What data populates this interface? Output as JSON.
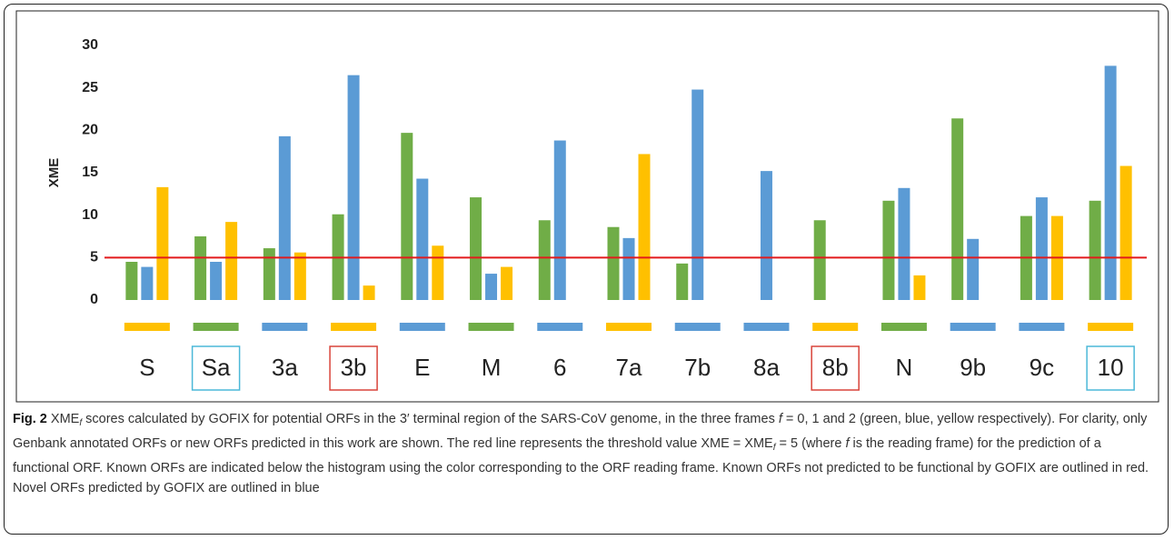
{
  "chart_data": {
    "type": "bar",
    "ylabel": "XME",
    "categories": [
      "S",
      "Sa",
      "3a",
      "3b",
      "E",
      "M",
      "6",
      "7a",
      "7b",
      "8a",
      "8b",
      "N",
      "9b",
      "9c",
      "10"
    ],
    "series": [
      {
        "color": "#70ad47",
        "values": [
          4.5,
          7.5,
          6.1,
          10.1,
          19.7,
          12.1,
          9.4,
          8.6,
          4.3,
          null,
          9.4,
          11.7,
          21.4,
          9.9,
          11.7
        ]
      },
      {
        "color": "#5b9bd5",
        "values": [
          3.9,
          4.5,
          19.3,
          26.5,
          14.3,
          3.1,
          18.8,
          7.3,
          24.8,
          15.2,
          null,
          13.2,
          7.2,
          12.1,
          27.6
        ]
      },
      {
        "color": "#ffc000",
        "values": [
          13.3,
          9.2,
          5.6,
          1.7,
          6.4,
          3.9,
          null,
          17.2,
          null,
          null,
          null,
          2.9,
          null,
          9.9,
          15.8
        ]
      }
    ],
    "frame_colors": [
      "#ffc000",
      "#70ad47",
      "#5b9bd5",
      "#ffc000",
      "#5b9bd5",
      "#70ad47",
      "#5b9bd5",
      "#ffc000",
      "#5b9bd5",
      "#5b9bd5",
      "#ffc000",
      "#70ad47",
      "#5b9bd5",
      "#5b9bd5",
      "#ffc000"
    ],
    "outlines": [
      null,
      "#4bb8d8",
      null,
      "#d9443a",
      null,
      null,
      null,
      null,
      null,
      null,
      "#d9443a",
      null,
      null,
      null,
      "#4bb8d8"
    ],
    "threshold": 5,
    "threshold_color": "#e31a1c",
    "ylim": [
      0,
      30
    ],
    "yticks": [
      0,
      5,
      10,
      15,
      20,
      25,
      30
    ]
  },
  "caption": [
    {
      "text": "Fig. 2",
      "style": "bold"
    },
    {
      "text": " XME"
    },
    {
      "text": "f",
      "style": "sub"
    },
    {
      "text": " scores calculated by GOFIX for potential ORFs in the 3′ terminal region of the SARS-CoV genome, in the three frames "
    },
    {
      "text": "f",
      "style": "italic"
    },
    {
      "text": " = 0, 1 and 2 (green, blue, yellow respectively). For clarity, only Genbank annotated ORFs or new ORFs predicted in this work are shown. The red line represents the threshold value XME = XME"
    },
    {
      "text": "f",
      "style": "sub"
    },
    {
      "text": " = 5 (where "
    },
    {
      "text": "f",
      "style": "italic"
    },
    {
      "text": " is the reading frame) for the prediction of a functional ORF. Known ORFs are indicated below the histogram using the color corresponding to the ORF reading frame. Known ORFs not predicted to be functional by GOFIX are outlined in red. Novel ORFs predicted by GOFIX are outlined in blue"
    }
  ]
}
